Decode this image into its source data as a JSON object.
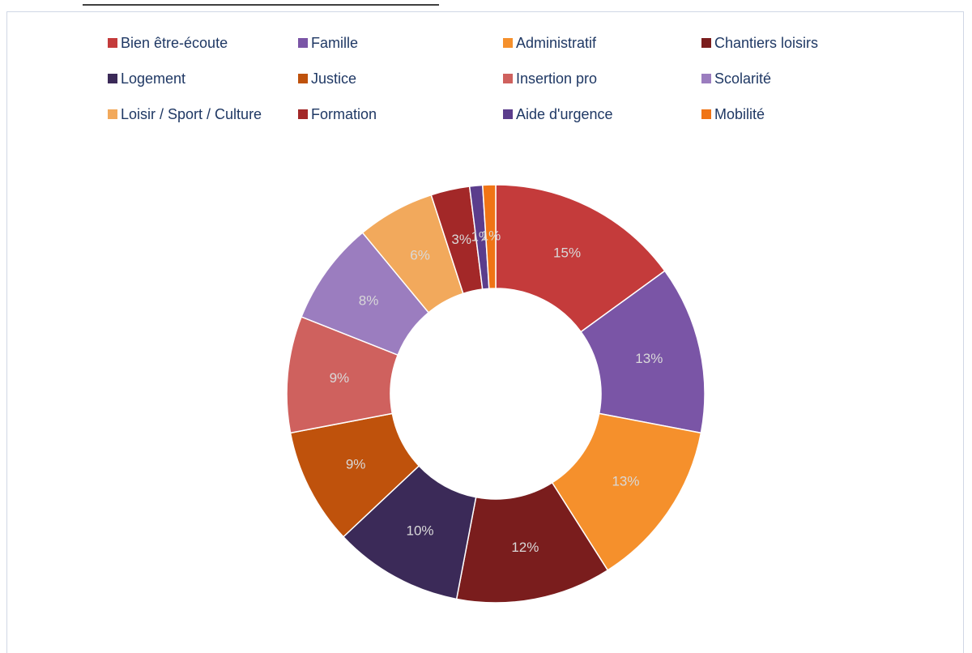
{
  "chart_data": {
    "type": "donut",
    "categories": [
      "Bien être-écoute",
      "Famille",
      "Administratif",
      "Chantiers loisirs",
      "Logement",
      "Justice",
      "Insertion pro",
      "Scolarité",
      "Loisir / Sport / Culture",
      "Formation",
      "Aide d'urgence",
      "Mobilité"
    ],
    "values": [
      15,
      13,
      13,
      12,
      10,
      9,
      9,
      8,
      6,
      3,
      1,
      1
    ],
    "value_labels": [
      "15%",
      "13%",
      "13%",
      "12%",
      "10%",
      "9%",
      "9%",
      "8%",
      "6%",
      "3%",
      "1%",
      "1%"
    ],
    "colors": [
      "#c43b3b",
      "#7a55a6",
      "#f5902c",
      "#7a1d1d",
      "#3b2a58",
      "#bf520c",
      "#cf615e",
      "#9b7dbf",
      "#f2a95c",
      "#a32828",
      "#5b3d8c",
      "#f07415"
    ],
    "legend": "top"
  }
}
